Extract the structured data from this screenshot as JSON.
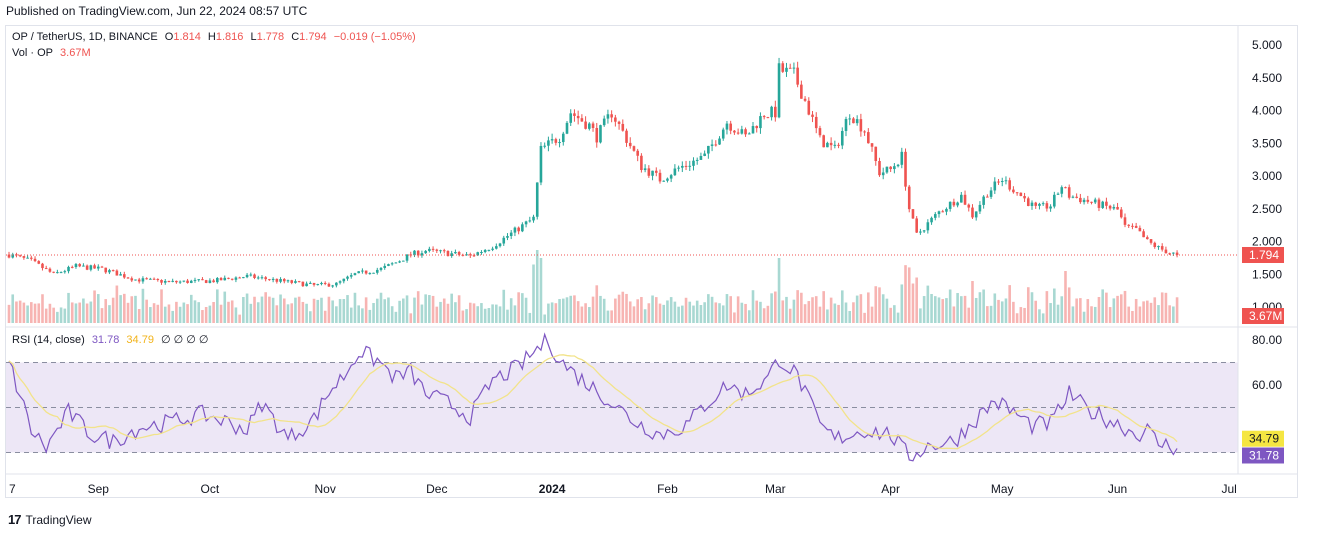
{
  "header": {
    "published": "Published on TradingView.com, Jun 22, 2024 08:57 UTC"
  },
  "legend": {
    "symbol": "OP / TetherUS, 1D, BINANCE",
    "open_label": "O",
    "open": "1.814",
    "high_label": "H",
    "high": "1.816",
    "low_label": "L",
    "low": "1.778",
    "close_label": "C",
    "close": "1.794",
    "change": "−0.019 (−1.05%)",
    "vol_label": "Vol · OP",
    "vol_value": "3.67M",
    "rsi_label": "RSI (14, close)",
    "rsi_value": "31.78",
    "rsi_ma_value": "34.79",
    "rsi_extra": "∅ ∅ ∅ ∅"
  },
  "colors": {
    "up": "#26a69a",
    "down": "#ef5350",
    "vol_up": "#a8d8d2",
    "vol_down": "#f7b4b2",
    "rsi_line": "#7e57c2",
    "rsi_ma": "#f2e38a",
    "rsi_band": "#ede7f6",
    "price_line": "#ef5350"
  },
  "footer": {
    "logo": "17",
    "brand": "TradingView"
  },
  "chart_data": {
    "type": "candlestick",
    "price_axis": {
      "ticks": [
        "5.000",
        "4.500",
        "4.000",
        "3.500",
        "3.000",
        "2.500",
        "2.000",
        "1.500",
        "1.000"
      ],
      "range": [
        1.0,
        5.0
      ]
    },
    "rsi_axis": {
      "ticks": [
        "80.00",
        "60.00"
      ],
      "range": [
        25,
        85
      ],
      "bands": [
        70,
        50,
        30
      ]
    },
    "x_axis": {
      "labels": [
        "7",
        "Sep",
        "Oct",
        "Nov",
        "Dec",
        "2024",
        "Feb",
        "Mar",
        "Apr",
        "May",
        "Jun",
        "Jul"
      ],
      "label_days": [
        0,
        24,
        54,
        85,
        115,
        146,
        177,
        206,
        237,
        267,
        298,
        328
      ]
    },
    "last_price": "1.794",
    "last_volume": "3.67M",
    "keypoints": [
      [
        0,
        1.8
      ],
      [
        6,
        1.7
      ],
      [
        12,
        1.5
      ],
      [
        18,
        1.62
      ],
      [
        25,
        1.58
      ],
      [
        34,
        1.42
      ],
      [
        44,
        1.38
      ],
      [
        55,
        1.4
      ],
      [
        64,
        1.47
      ],
      [
        74,
        1.39
      ],
      [
        82,
        1.33
      ],
      [
        88,
        1.35
      ],
      [
        93,
        1.5
      ],
      [
        100,
        1.58
      ],
      [
        104,
        1.68
      ],
      [
        108,
        1.8
      ],
      [
        112,
        1.86
      ],
      [
        118,
        1.82
      ],
      [
        124,
        1.78
      ],
      [
        130,
        1.93
      ],
      [
        137,
        2.2
      ],
      [
        141,
        2.35
      ],
      [
        143,
        3.4
      ],
      [
        148,
        3.6
      ],
      [
        151,
        3.97
      ],
      [
        156,
        3.77
      ],
      [
        158,
        3.6
      ],
      [
        162,
        3.97
      ],
      [
        165,
        3.67
      ],
      [
        170,
        3.15
      ],
      [
        175,
        2.95
      ],
      [
        180,
        3.12
      ],
      [
        187,
        3.3
      ],
      [
        193,
        3.82
      ],
      [
        198,
        3.6
      ],
      [
        203,
        3.95
      ],
      [
        206,
        3.97
      ],
      [
        207,
        4.62
      ],
      [
        211,
        4.55
      ],
      [
        214,
        4.15
      ],
      [
        218,
        3.55
      ],
      [
        222,
        3.4
      ],
      [
        226,
        3.97
      ],
      [
        230,
        3.7
      ],
      [
        234,
        3.05
      ],
      [
        237,
        3.1
      ],
      [
        240,
        3.3
      ],
      [
        242,
        2.5
      ],
      [
        244,
        2.1
      ],
      [
        250,
        2.45
      ],
      [
        256,
        2.7
      ],
      [
        259,
        2.4
      ],
      [
        263,
        2.75
      ],
      [
        267,
        2.95
      ],
      [
        271,
        2.75
      ],
      [
        276,
        2.5
      ],
      [
        280,
        2.55
      ],
      [
        283,
        2.85
      ],
      [
        285,
        2.7
      ],
      [
        292,
        2.58
      ],
      [
        298,
        2.48
      ],
      [
        300,
        2.22
      ],
      [
        303,
        2.18
      ],
      [
        306,
        2.0
      ],
      [
        309,
        1.9
      ],
      [
        312,
        1.83
      ],
      [
        314,
        1.794
      ]
    ],
    "volume_peaks": {
      "141": 4.5,
      "143": 5.0,
      "207": 5.0,
      "244": 3.5,
      "284": 4.0
    },
    "rsi_keypoints": [
      [
        0,
        70
      ],
      [
        6,
        40
      ],
      [
        10,
        32
      ],
      [
        16,
        48
      ],
      [
        22,
        38
      ],
      [
        28,
        35
      ],
      [
        35,
        41
      ],
      [
        42,
        43
      ],
      [
        52,
        47
      ],
      [
        58,
        44
      ],
      [
        64,
        40
      ],
      [
        68,
        52
      ],
      [
        75,
        36
      ],
      [
        82,
        45
      ],
      [
        86,
        57
      ],
      [
        90,
        64
      ],
      [
        94,
        75
      ],
      [
        99,
        71
      ],
      [
        104,
        63
      ],
      [
        108,
        66
      ],
      [
        112,
        56
      ],
      [
        118,
        52
      ],
      [
        124,
        46
      ],
      [
        130,
        62
      ],
      [
        137,
        68
      ],
      [
        142,
        76
      ],
      [
        145,
        80
      ],
      [
        148,
        71
      ],
      [
        152,
        65
      ],
      [
        160,
        55
      ],
      [
        168,
        44
      ],
      [
        175,
        38
      ],
      [
        182,
        42
      ],
      [
        187,
        51
      ],
      [
        193,
        60
      ],
      [
        198,
        56
      ],
      [
        204,
        63
      ],
      [
        207,
        72
      ],
      [
        212,
        64
      ],
      [
        218,
        42
      ],
      [
        222,
        36
      ],
      [
        230,
        40
      ],
      [
        237,
        38
      ],
      [
        242,
        28
      ],
      [
        247,
        33
      ],
      [
        254,
        35
      ],
      [
        260,
        45
      ],
      [
        265,
        53
      ],
      [
        270,
        48
      ],
      [
        275,
        42
      ],
      [
        280,
        43
      ],
      [
        285,
        56
      ],
      [
        290,
        49
      ],
      [
        295,
        45
      ],
      [
        299,
        42
      ],
      [
        303,
        38
      ],
      [
        306,
        40
      ],
      [
        309,
        34
      ],
      [
        312,
        33
      ],
      [
        314,
        31.78
      ]
    ],
    "rsi_ma_last": 34.79
  }
}
